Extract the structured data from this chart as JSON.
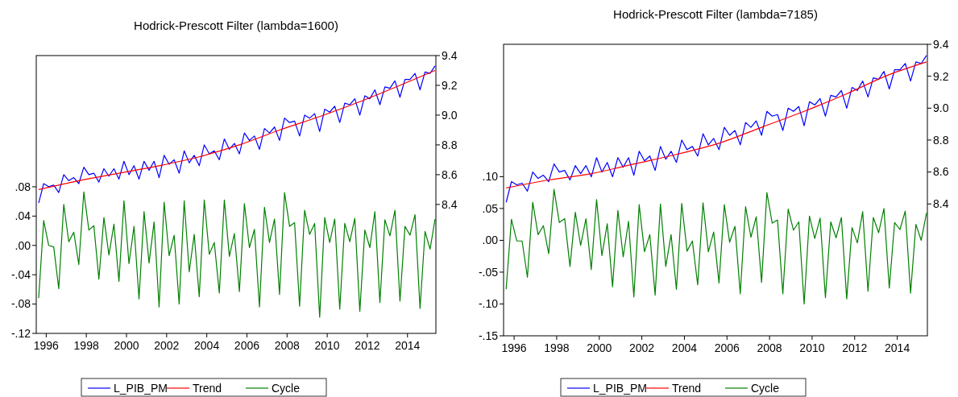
{
  "chart_data": [
    {
      "type": "line",
      "title": "Hodrick-Prescott Filter (lambda=1600)",
      "x": [
        1996,
        1996.25,
        1996.5,
        1996.75,
        1997,
        1997.25,
        1997.5,
        1997.75,
        1998,
        1998.25,
        1998.5,
        1998.75,
        1999,
        1999.25,
        1999.5,
        1999.75,
        2000,
        2000.25,
        2000.5,
        2000.75,
        2001,
        2001.25,
        2001.5,
        2001.75,
        2002,
        2002.25,
        2002.5,
        2002.75,
        2003,
        2003.25,
        2003.5,
        2003.75,
        2004,
        2004.25,
        2004.5,
        2004.75,
        2005,
        2005.25,
        2005.5,
        2005.75,
        2006,
        2006.25,
        2006.5,
        2006.75,
        2007,
        2007.25,
        2007.5,
        2007.75,
        2008,
        2008.25,
        2008.5,
        2008.75,
        2009,
        2009.25,
        2009.5,
        2009.75,
        2010,
        2010.25,
        2010.5,
        2010.75,
        2011,
        2011.25,
        2011.5,
        2011.75,
        2012,
        2012.25,
        2012.5,
        2012.75,
        2013,
        2013.25,
        2013.5,
        2013.75,
        2014,
        2014.25,
        2014.5,
        2014.75,
        2015,
        2015.25,
        2015.5,
        2015.75
      ],
      "series": [
        {
          "name": "L_PIB_PM",
          "color": "#0000ff",
          "axis": "y2",
          "values": [
            8.41,
            8.54,
            8.52,
            8.53,
            8.48,
            8.6,
            8.56,
            8.58,
            8.54,
            8.65,
            8.6,
            8.61,
            8.55,
            8.64,
            8.59,
            8.64,
            8.57,
            8.69,
            8.6,
            8.66,
            8.57,
            8.69,
            8.63,
            8.69,
            8.58,
            8.73,
            8.67,
            8.7,
            8.61,
            8.76,
            8.68,
            8.73,
            8.66,
            8.8,
            8.74,
            8.76,
            8.7,
            8.84,
            8.77,
            8.81,
            8.74,
            8.88,
            8.83,
            8.86,
            8.77,
            8.91,
            8.88,
            8.92,
            8.83,
            8.98,
            8.95,
            8.96,
            8.86,
            9.0,
            8.98,
            9.01,
            8.89,
            9.04,
            9.02,
            9.06,
            8.95,
            9.08,
            9.07,
            9.11,
            9.0,
            9.13,
            9.11,
            9.17,
            9.07,
            9.19,
            9.18,
            9.23,
            9.12,
            9.24,
            9.24,
            9.28,
            9.17,
            9.29,
            9.28,
            9.33
          ]
        },
        {
          "name": "Trend",
          "color": "#ff0000",
          "axis": "y2",
          "x": [
            1996,
            1998,
            2000,
            2002,
            2004,
            2006,
            2008,
            2010,
            2012,
            2014,
            2015.75
          ],
          "values": [
            8.5,
            8.56,
            8.61,
            8.66,
            8.72,
            8.8,
            8.9,
            8.99,
            9.09,
            9.2,
            9.3
          ]
        },
        {
          "name": "Cycle",
          "color": "#008000",
          "values": [
            -0.072,
            0.034,
            0.0,
            -0.002,
            -0.059,
            0.056,
            0.005,
            0.018,
            -0.026,
            0.073,
            0.021,
            0.027,
            -0.046,
            0.038,
            -0.013,
            0.029,
            -0.049,
            0.061,
            -0.025,
            0.026,
            -0.073,
            0.046,
            -0.024,
            0.032,
            -0.084,
            0.059,
            -0.014,
            0.014,
            -0.08,
            0.061,
            -0.036,
            0.015,
            -0.07,
            0.062,
            -0.012,
            0.004,
            -0.065,
            0.062,
            -0.015,
            0.016,
            -0.063,
            0.057,
            -0.003,
            0.022,
            -0.084,
            0.052,
            0.004,
            0.036,
            -0.067,
            0.072,
            0.026,
            0.031,
            -0.083,
            0.048,
            0.015,
            0.03,
            -0.098,
            0.038,
            0.004,
            0.036,
            -0.087,
            0.03,
            0.005,
            0.037,
            -0.09,
            0.021,
            -0.003,
            0.046,
            -0.078,
            0.035,
            0.013,
            0.048,
            -0.076,
            0.026,
            0.014,
            0.042,
            -0.086,
            0.019,
            -0.005,
            0.036
          ]
        }
      ],
      "xlim": [
        1995.88,
        2015.79
      ],
      "xticks": [
        {
          "value": 1996.375,
          "label": "1996"
        },
        {
          "value": 1998.375,
          "label": "1998"
        },
        {
          "value": 2000.375,
          "label": "2000"
        },
        {
          "value": 2002.375,
          "label": "2002"
        },
        {
          "value": 2004.375,
          "label": "2004"
        },
        {
          "value": 2006.375,
          "label": "2006"
        },
        {
          "value": 2008.375,
          "label": "2008"
        },
        {
          "value": 2010.375,
          "label": "2010"
        },
        {
          "value": 2012.375,
          "label": "2012"
        },
        {
          "value": 2014.375,
          "label": "2014"
        }
      ],
      "ylim": [
        -0.12,
        0.259
      ],
      "yticks": [
        {
          "value": -0.12,
          "label": "-.12"
        },
        {
          "value": -0.08,
          "label": "-.08"
        },
        {
          "value": -0.04,
          "label": "-.04"
        },
        {
          "value": 0,
          "label": ".00"
        },
        {
          "value": 0.04,
          "label": ".04"
        },
        {
          "value": 0.08,
          "label": ".08"
        }
      ],
      "y2lim": [
        7.534,
        9.4
      ],
      "y2ticks": [
        {
          "value": 8.4,
          "label": "8.4"
        },
        {
          "value": 8.6,
          "label": "8.6"
        },
        {
          "value": 8.8,
          "label": "8.8"
        },
        {
          "value": 9.0,
          "label": "9.0"
        },
        {
          "value": 9.2,
          "label": "9.2"
        },
        {
          "value": 9.4,
          "label": "9.4"
        }
      ],
      "legend": "bottom",
      "grid": false,
      "line_style": "solid",
      "marker": "none"
    },
    {
      "type": "line",
      "title": "Hodrick-Prescott Filter (lambda=7185)",
      "x": [
        1996,
        1996.25,
        1996.5,
        1996.75,
        1997,
        1997.25,
        1997.5,
        1997.75,
        1998,
        1998.25,
        1998.5,
        1998.75,
        1999,
        1999.25,
        1999.5,
        1999.75,
        2000,
        2000.25,
        2000.5,
        2000.75,
        2001,
        2001.25,
        2001.5,
        2001.75,
        2002,
        2002.25,
        2002.5,
        2002.75,
        2003,
        2003.25,
        2003.5,
        2003.75,
        2004,
        2004.25,
        2004.5,
        2004.75,
        2005,
        2005.25,
        2005.5,
        2005.75,
        2006,
        2006.25,
        2006.5,
        2006.75,
        2007,
        2007.25,
        2007.5,
        2007.75,
        2008,
        2008.25,
        2008.5,
        2008.75,
        2009,
        2009.25,
        2009.5,
        2009.75,
        2010,
        2010.25,
        2010.5,
        2010.75,
        2011,
        2011.25,
        2011.5,
        2011.75,
        2012,
        2012.25,
        2012.5,
        2012.75,
        2013,
        2013.25,
        2013.5,
        2013.75,
        2014,
        2014.25,
        2014.5,
        2014.75,
        2015,
        2015.25,
        2015.5,
        2015.75
      ],
      "series": [
        {
          "name": "L_PIB_PM",
          "color": "#0000ff",
          "axis": "y2",
          "values": [
            8.41,
            8.54,
            8.52,
            8.53,
            8.48,
            8.6,
            8.56,
            8.58,
            8.54,
            8.65,
            8.6,
            8.61,
            8.55,
            8.64,
            8.59,
            8.64,
            8.57,
            8.69,
            8.6,
            8.66,
            8.57,
            8.69,
            8.63,
            8.69,
            8.58,
            8.73,
            8.67,
            8.7,
            8.61,
            8.76,
            8.68,
            8.73,
            8.66,
            8.8,
            8.74,
            8.76,
            8.7,
            8.84,
            8.77,
            8.81,
            8.74,
            8.88,
            8.83,
            8.86,
            8.77,
            8.91,
            8.88,
            8.92,
            8.83,
            8.98,
            8.95,
            8.96,
            8.86,
            9.0,
            8.98,
            9.01,
            8.89,
            9.04,
            9.02,
            9.06,
            8.95,
            9.08,
            9.07,
            9.11,
            9.0,
            9.13,
            9.11,
            9.17,
            9.07,
            9.19,
            9.18,
            9.23,
            9.12,
            9.24,
            9.24,
            9.28,
            9.17,
            9.29,
            9.28,
            9.33
          ]
        },
        {
          "name": "Trend",
          "color": "#ff0000",
          "axis": "y2",
          "x": [
            1996,
            1998,
            2000,
            2002,
            2004,
            2006,
            2008,
            2010,
            2012,
            2014,
            2015.75
          ],
          "values": [
            8.5,
            8.55,
            8.59,
            8.65,
            8.71,
            8.78,
            8.88,
            8.98,
            9.09,
            9.21,
            9.29
          ]
        },
        {
          "name": "Cycle",
          "color": "#008000",
          "values": [
            -0.077,
            0.033,
            -0.001,
            -0.001,
            -0.058,
            0.06,
            0.009,
            0.023,
            -0.021,
            0.08,
            0.028,
            0.034,
            -0.041,
            0.044,
            -0.008,
            0.034,
            -0.046,
            0.064,
            -0.024,
            0.026,
            -0.073,
            0.047,
            -0.026,
            0.03,
            -0.089,
            0.056,
            -0.018,
            0.009,
            -0.086,
            0.057,
            -0.041,
            0.009,
            -0.077,
            0.058,
            -0.017,
            -0.001,
            -0.07,
            0.059,
            -0.018,
            0.013,
            -0.067,
            0.056,
            -0.003,
            0.022,
            -0.084,
            0.053,
            0.005,
            0.037,
            -0.066,
            0.075,
            0.027,
            0.032,
            -0.084,
            0.049,
            0.016,
            0.029,
            -0.1,
            0.038,
            0.003,
            0.035,
            -0.09,
            0.029,
            0.004,
            0.036,
            -0.092,
            0.02,
            -0.004,
            0.045,
            -0.08,
            0.036,
            0.012,
            0.05,
            -0.075,
            0.028,
            0.017,
            0.046,
            -0.083,
            0.025,
            0.0,
            0.043
          ]
        }
      ],
      "xlim": [
        1995.88,
        2015.79
      ],
      "xticks": [
        {
          "value": 1996.375,
          "label": "1996"
        },
        {
          "value": 1998.375,
          "label": "1998"
        },
        {
          "value": 2000.375,
          "label": "2000"
        },
        {
          "value": 2002.375,
          "label": "2002"
        },
        {
          "value": 2004.375,
          "label": "2004"
        },
        {
          "value": 2006.375,
          "label": "2006"
        },
        {
          "value": 2008.375,
          "label": "2008"
        },
        {
          "value": 2010.375,
          "label": "2010"
        },
        {
          "value": 2012.375,
          "label": "2012"
        },
        {
          "value": 2014.375,
          "label": "2014"
        }
      ],
      "ylim": [
        -0.15,
        0.308
      ],
      "yticks": [
        {
          "value": -0.15,
          "label": "-.15"
        },
        {
          "value": -0.1,
          "label": "-.10"
        },
        {
          "value": -0.05,
          "label": "-.05"
        },
        {
          "value": 0,
          "label": ".00"
        },
        {
          "value": 0.05,
          "label": ".05"
        },
        {
          "value": 0.1,
          "label": ".10"
        }
      ],
      "y2lim": [
        7.574,
        9.4
      ],
      "y2ticks": [
        {
          "value": 8.4,
          "label": "8.4"
        },
        {
          "value": 8.6,
          "label": "8.6"
        },
        {
          "value": 8.8,
          "label": "8.8"
        },
        {
          "value": 9.0,
          "label": "9.0"
        },
        {
          "value": 9.2,
          "label": "9.2"
        },
        {
          "value": 9.4,
          "label": "9.4"
        }
      ],
      "legend": "bottom",
      "grid": false,
      "line_style": "solid",
      "marker": "none"
    }
  ]
}
